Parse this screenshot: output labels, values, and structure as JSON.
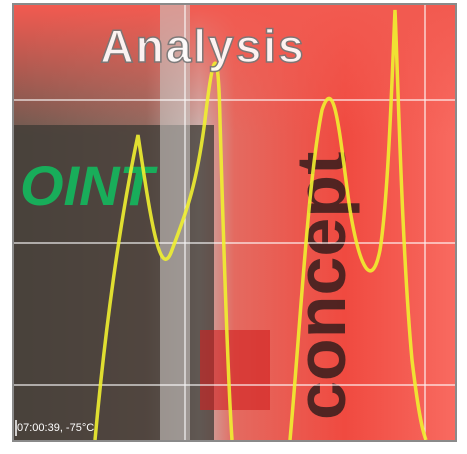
{
  "image": {
    "title": "Analysis",
    "readout": "07:00:39, -75°C",
    "background_text": [
      "OINT",
      "concept"
    ]
  }
}
